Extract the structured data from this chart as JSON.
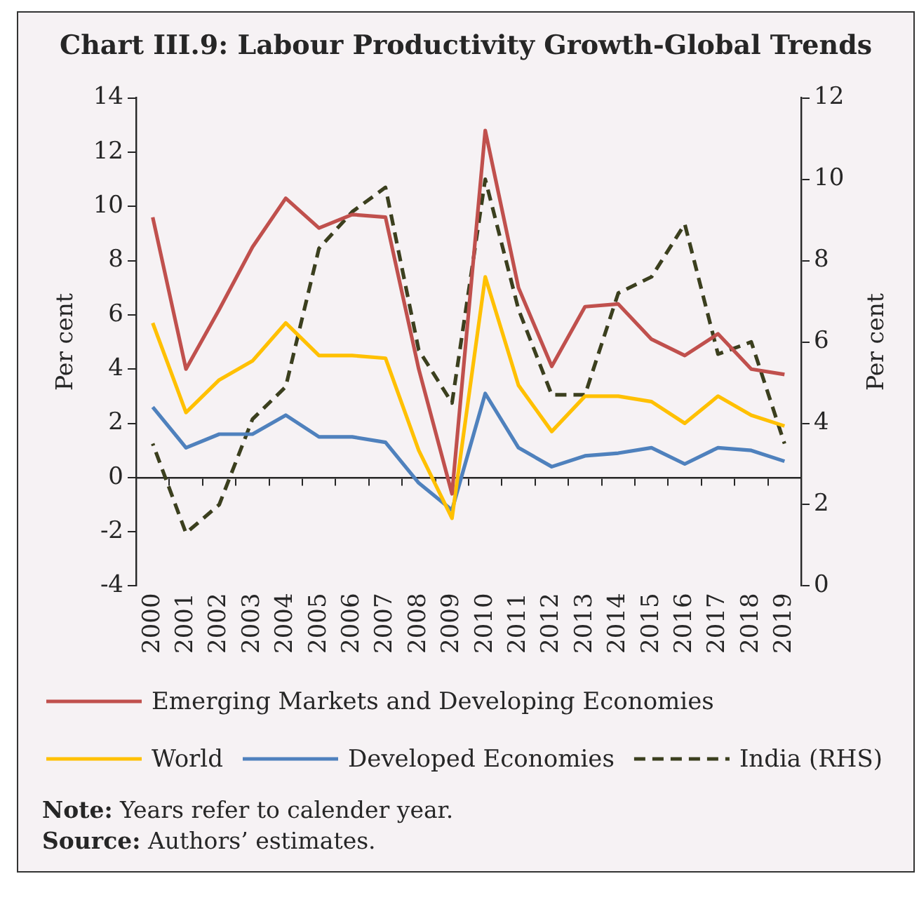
{
  "chart_data": {
    "type": "line",
    "title": "Chart III.9: Labour Productivity Growth-Global Trends",
    "ylabel": "Per cent",
    "y2label": "Per cent",
    "categories": [
      "2000",
      "2001",
      "2002",
      "2003",
      "2004",
      "2005",
      "2006",
      "2007",
      "2008",
      "2009",
      "2010",
      "2011",
      "2012",
      "2013",
      "2014",
      "2015",
      "2016",
      "2017",
      "2018",
      "2019"
    ],
    "series": [
      {
        "name": "Emerging Markets and Developing Economies",
        "color": "#c0504d",
        "values": [
          9.6,
          4.0,
          6.2,
          8.5,
          10.3,
          9.2,
          9.7,
          9.6,
          4.0,
          -0.6,
          12.8,
          7.0,
          4.1,
          6.3,
          6.4,
          5.1,
          4.5,
          5.3,
          4.0,
          3.8
        ]
      },
      {
        "name": "World",
        "color": "#ffc000",
        "values": [
          5.7,
          2.4,
          3.6,
          4.3,
          5.7,
          4.5,
          4.5,
          4.4,
          1.0,
          -1.5,
          7.4,
          3.4,
          1.7,
          3.0,
          3.0,
          2.8,
          2.0,
          3.0,
          2.3,
          1.9
        ]
      },
      {
        "name": "Developed Economies",
        "color": "#4f81bd",
        "values": [
          2.6,
          1.1,
          1.6,
          1.6,
          2.3,
          1.5,
          1.5,
          1.3,
          -0.2,
          -1.2,
          3.1,
          1.1,
          0.4,
          0.8,
          0.9,
          1.1,
          0.5,
          1.1,
          1.0,
          0.6
        ]
      },
      {
        "name": "India (RHS)",
        "color": "#3b3f1e",
        "axis": "y2",
        "line_style": "dashed",
        "values": [
          3.5,
          1.3,
          2.0,
          4.1,
          4.9,
          8.3,
          9.2,
          9.8,
          5.8,
          4.5,
          10.0,
          6.8,
          4.7,
          4.7,
          7.2,
          7.6,
          8.9,
          5.7,
          6.0,
          3.5
        ]
      }
    ],
    "ylim": [
      -4,
      14
    ],
    "yticks": [
      -4,
      -2,
      0,
      2,
      4,
      6,
      8,
      10,
      12,
      14
    ],
    "y2lim": [
      0,
      12
    ],
    "y2ticks": [
      0,
      2,
      4,
      6,
      8,
      10,
      12
    ],
    "ref_lines": [
      {
        "axis": "y",
        "value": 0,
        "color": "#262626"
      }
    ],
    "grid": false,
    "legend": "bottom",
    "marker": "none",
    "line_style": "solid",
    "annotations": [
      "Note: Years refer to calender year.",
      "Source: Authors’ estimates."
    ]
  }
}
